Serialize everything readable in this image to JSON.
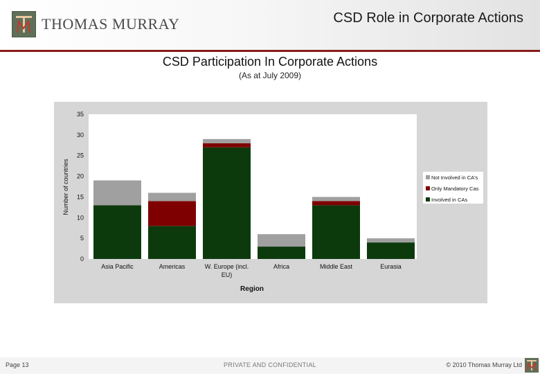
{
  "header": {
    "logo_mark": "TM",
    "company": "THOMAS MURRAY",
    "slide_title": "CSD Role in Corporate Actions"
  },
  "chart_data": {
    "type": "bar",
    "stacked": true,
    "title": "CSD Participation In Corporate Actions",
    "subtitle": "(As at July 2009)",
    "xlabel": "Region",
    "ylabel": "Number of countries",
    "ylim": [
      0,
      35
    ],
    "yticks": [
      0,
      5,
      10,
      15,
      20,
      25,
      30,
      35
    ],
    "categories": [
      "Asia Pacific",
      "Americas",
      "W. Europe (incl. EU)",
      "Africa",
      "Middle East",
      "Eurasia"
    ],
    "category_lines": [
      [
        "Asia Pacific"
      ],
      [
        "Americas"
      ],
      [
        "W. Europe (incl.",
        "EU)"
      ],
      [
        "Africa"
      ],
      [
        "Middle East"
      ],
      [
        "Eurasia"
      ]
    ],
    "series": [
      {
        "name": "Involved in CAs",
        "color": "#0d3a0d",
        "values": [
          13,
          8,
          27,
          3,
          13,
          4
        ]
      },
      {
        "name": "Only Mandatory Cas",
        "color": "#7f0000",
        "values": [
          0,
          6,
          1,
          0,
          1,
          0
        ]
      },
      {
        "name": "Not Involved in CA's",
        "color": "#a0a0a0",
        "values": [
          6,
          2,
          1,
          3,
          1,
          1
        ]
      }
    ],
    "legend_order": [
      "Not Involved in CA's",
      "Only Mandatory Cas",
      "Involved in CAs"
    ],
    "legend_position": "right",
    "grid": false
  },
  "footer": {
    "page": "Page 13",
    "confidential": "PRIVATE AND CONFIDENTIAL",
    "copyright": "© 2010 Thomas Murray Ltd"
  }
}
